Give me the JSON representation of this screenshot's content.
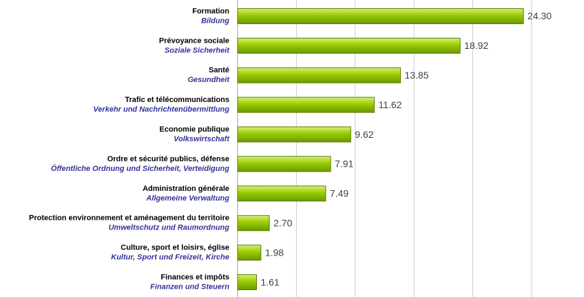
{
  "chart_data": {
    "type": "barh",
    "categories": [
      "Formation",
      "Prévoyance sociale",
      "Santé",
      "Trafic et télécommunications",
      "Economie publique",
      "Ordre et sécurité publics, défense",
      "Administration générale",
      "Protection environnement et aménagement du territoire",
      "Culture, sport et loisirs, église",
      "Finances et impôts"
    ],
    "category_translations": [
      "Bildung",
      "Soziale Sicherheit",
      "Gesundheit",
      "Verkehr und Nachrichtenübermittlung",
      "Volkswirtschaft",
      "Öffentliche Ordnung und Sicherheit, Verteidigung",
      "Allgemeine Verwaltung",
      "Umweltschutz und Raumordnung",
      "Kultur, Sport und Freizeit, Kirche",
      "Finanzen und Steuern"
    ],
    "values": [
      24.3,
      18.92,
      13.85,
      11.62,
      9.62,
      7.91,
      7.49,
      2.7,
      1.98,
      1.61
    ],
    "value_labels": [
      "24.30",
      "18.92",
      "13.85",
      "11.62",
      "9.62",
      "7.91",
      "7.49",
      "2.70",
      "1.98",
      "1.61"
    ],
    "color": "#99cc00",
    "xlim": [
      0,
      25
    ],
    "xticks": [
      0,
      5,
      10,
      15,
      20,
      25
    ],
    "grid": true
  }
}
